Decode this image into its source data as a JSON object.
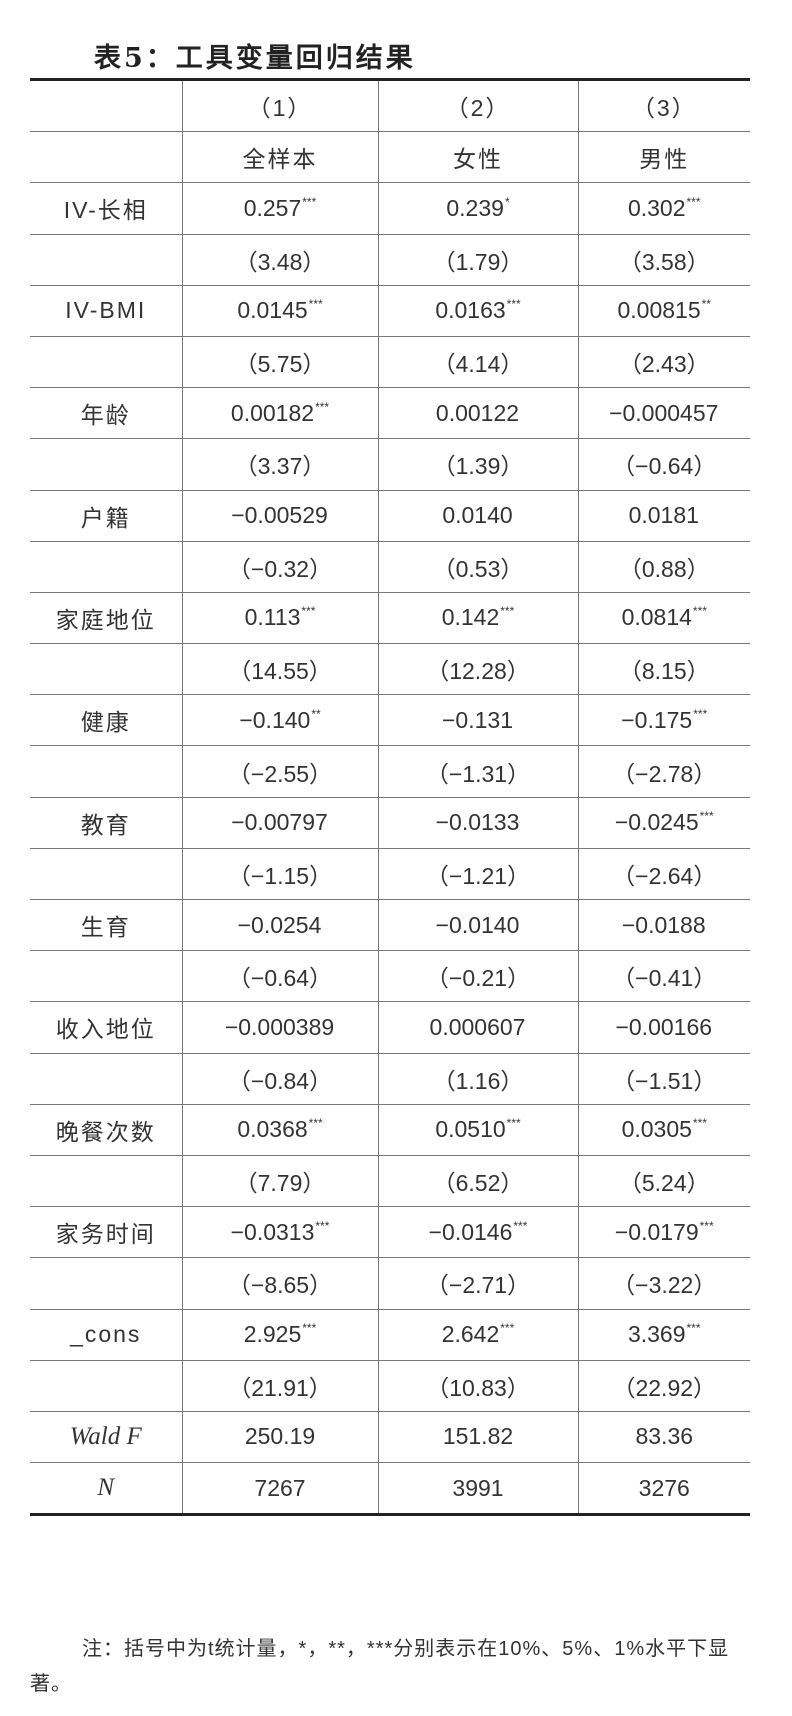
{
  "title": "表5：工具变量回归结果",
  "columns": [
    "（1）",
    "（2）",
    "（3）"
  ],
  "samples": [
    "全样本",
    "女性",
    "男性"
  ],
  "rows": [
    {
      "label": "IV-长相",
      "coefs": [
        {
          "v": "0.257",
          "s": "***"
        },
        {
          "v": "0.239",
          "s": "*"
        },
        {
          "v": "0.302",
          "s": "***"
        }
      ],
      "t": [
        "（3.48）",
        "（1.79）",
        "（3.58）"
      ]
    },
    {
      "label": "IV-BMI",
      "coefs": [
        {
          "v": "0.0145",
          "s": "***"
        },
        {
          "v": "0.0163",
          "s": "***"
        },
        {
          "v": "0.00815",
          "s": "**"
        }
      ],
      "t": [
        "（5.75）",
        "（4.14）",
        "（2.43）"
      ]
    },
    {
      "label": "年龄",
      "coefs": [
        {
          "v": "0.00182",
          "s": "***"
        },
        {
          "v": "0.00122",
          "s": ""
        },
        {
          "v": "−0.000457",
          "s": ""
        }
      ],
      "t": [
        "（3.37）",
        "（1.39）",
        "（−0.64）"
      ]
    },
    {
      "label": "户籍",
      "coefs": [
        {
          "v": "−0.00529",
          "s": ""
        },
        {
          "v": "0.0140",
          "s": ""
        },
        {
          "v": "0.0181",
          "s": ""
        }
      ],
      "t": [
        "（−0.32）",
        "（0.53）",
        "（0.88）"
      ]
    },
    {
      "label": "家庭地位",
      "coefs": [
        {
          "v": "0.113",
          "s": "***"
        },
        {
          "v": "0.142",
          "s": "***"
        },
        {
          "v": "0.0814",
          "s": "***"
        }
      ],
      "t": [
        "（14.55）",
        "（12.28）",
        "（8.15）"
      ]
    },
    {
      "label": "健康",
      "coefs": [
        {
          "v": "−0.140",
          "s": "**"
        },
        {
          "v": "−0.131",
          "s": ""
        },
        {
          "v": "−0.175",
          "s": "***"
        }
      ],
      "t": [
        "（−2.55）",
        "（−1.31）",
        "（−2.78）"
      ]
    },
    {
      "label": "教育",
      "coefs": [
        {
          "v": "−0.00797",
          "s": ""
        },
        {
          "v": "−0.0133",
          "s": ""
        },
        {
          "v": "−0.0245",
          "s": "***"
        }
      ],
      "t": [
        "（−1.15）",
        "（−1.21）",
        "（−2.64）"
      ]
    },
    {
      "label": "生育",
      "coefs": [
        {
          "v": "−0.0254",
          "s": ""
        },
        {
          "v": "−0.0140",
          "s": ""
        },
        {
          "v": "−0.0188",
          "s": ""
        }
      ],
      "t": [
        "（−0.64）",
        "（−0.21）",
        "（−0.41）"
      ]
    },
    {
      "label": "收入地位",
      "coefs": [
        {
          "v": "−0.000389",
          "s": ""
        },
        {
          "v": "0.000607",
          "s": ""
        },
        {
          "v": "−0.00166",
          "s": ""
        }
      ],
      "t": [
        "（−0.84）",
        "（1.16）",
        "（−1.51）"
      ]
    },
    {
      "label": "晚餐次数",
      "coefs": [
        {
          "v": "0.0368",
          "s": "***"
        },
        {
          "v": "0.0510",
          "s": "***"
        },
        {
          "v": "0.0305",
          "s": "***"
        }
      ],
      "t": [
        "（7.79）",
        "（6.52）",
        "（5.24）"
      ]
    },
    {
      "label": "家务时间",
      "coefs": [
        {
          "v": "−0.0313",
          "s": "***"
        },
        {
          "v": "−0.0146",
          "s": "***"
        },
        {
          "v": "−0.0179",
          "s": "***"
        }
      ],
      "t": [
        "（−8.65）",
        "（−2.71）",
        "（−3.22）"
      ]
    },
    {
      "label": "_cons",
      "coefs": [
        {
          "v": "2.925",
          "s": "***"
        },
        {
          "v": "2.642",
          "s": "***"
        },
        {
          "v": "3.369",
          "s": "***"
        }
      ],
      "t": [
        "（21.91）",
        "（10.83）",
        "（22.92）"
      ]
    }
  ],
  "stats": [
    {
      "label": "Wald F",
      "values": [
        "250.19",
        "151.82",
        "83.36"
      ]
    },
    {
      "label": "N",
      "values": [
        "7267",
        "3991",
        "3276"
      ]
    }
  ],
  "note": "注：括号中为t统计量，*，**，***分别表示在10%、5%、1%水平下显著。"
}
